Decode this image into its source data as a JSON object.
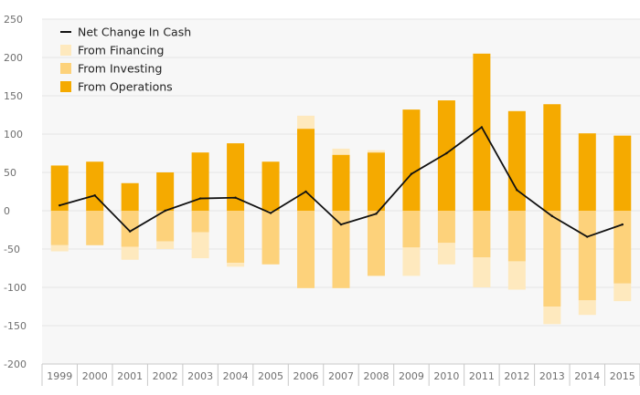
{
  "chart_data": {
    "type": "bar",
    "stacked": true,
    "title": "",
    "xlabel": "",
    "ylabel": "",
    "ylim": [
      -200,
      250
    ],
    "yticks": [
      250,
      200,
      150,
      100,
      50,
      0,
      -50,
      -100,
      -150,
      -200
    ],
    "grid": true,
    "legend_position": "top-left",
    "categories": [
      "1999",
      "2000",
      "2001",
      "2002",
      "2003",
      "2004",
      "2005",
      "2006",
      "2007",
      "2008",
      "2009",
      "2010",
      "2011",
      "2012",
      "2013",
      "2014",
      "2015"
    ],
    "series": [
      {
        "name": "From Operations",
        "kind": "bar",
        "color": "#f5aa00",
        "values": [
          59,
          64,
          36,
          50,
          76,
          88,
          64,
          107,
          73,
          76,
          132,
          144,
          205,
          130,
          139,
          101,
          98
        ]
      },
      {
        "name": "From Investing",
        "kind": "bar",
        "color": "#fdd27b",
        "values": [
          -45,
          -45,
          -47,
          -40,
          -28,
          -68,
          -70,
          -101,
          -101,
          -85,
          -48,
          -42,
          -61,
          -66,
          -125,
          -117,
          -95
        ]
      },
      {
        "name": "From Financing",
        "kind": "bar",
        "color": "#fee9be",
        "values": [
          -8,
          0,
          -17,
          -10,
          -34,
          -5,
          0,
          17,
          8,
          3,
          -37,
          -28,
          -39,
          -37,
          -23,
          -19,
          -23
        ]
      },
      {
        "name": "Net Change In Cash",
        "kind": "line",
        "color": "#111111",
        "values": [
          7,
          20,
          -27,
          0,
          16,
          17,
          -3,
          25,
          -18,
          -4,
          48,
          75,
          109,
          27,
          -7,
          -34,
          -18
        ]
      }
    ],
    "legend": [
      {
        "label": "Net Change In Cash",
        "symbol": "line",
        "color": "#111111"
      },
      {
        "label": "From Financing",
        "symbol": "square",
        "color": "#fee9be"
      },
      {
        "label": "From Investing",
        "symbol": "square",
        "color": "#fdd27b"
      },
      {
        "label": "From Operations",
        "symbol": "square",
        "color": "#f5aa00"
      }
    ],
    "colors": {
      "background": "#ffffff",
      "plot_background": "#f7f7f7",
      "grid": "#e6e6e6",
      "axis": "#c8c8c8"
    }
  }
}
